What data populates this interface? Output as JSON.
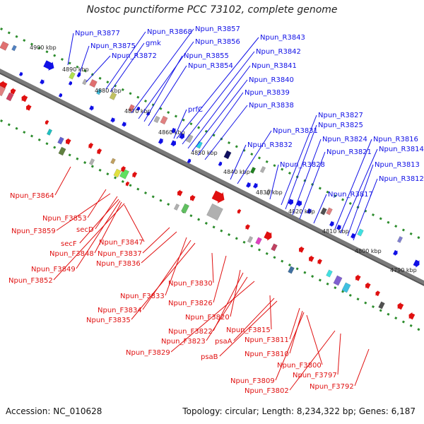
{
  "title": "Nostoc punctiforme PCC 73102, complete genome",
  "accession_text": "Accession: NC_010628",
  "summary_text": "Topology: circular; Length: 8,234,322 bp; Genes: 6,187",
  "colors": {
    "forward": "#1010e6",
    "reverse": "#e01010",
    "backbone": "#7a7a7a",
    "ticks": "#2c8c2c"
  },
  "scale_labels": [
    "4900 kbp",
    "4890 kbp",
    "4880 kbp",
    "4870 kbp",
    "4860 kbp",
    "4850 kbp",
    "4840 kbp",
    "4830 kbp",
    "4820 kbp",
    "4810 kbp",
    "4800 kbp",
    "4790 kbp"
  ],
  "forward_labels": [
    "Npun_R3877",
    "Npun_R3875",
    "Npun_R3872",
    "Npun_R3868",
    "gmk",
    "Npun_R3857",
    "Npun_R3856",
    "Npun_R3855",
    "Npun_R3854",
    "Npun_R3843",
    "Npun_R3842",
    "Npun_R3841",
    "Npun_R3840",
    "Npun_R3839",
    "Npun_R3838",
    "prfC",
    "Npun_R3832",
    "Npun_R3831",
    "Npun_R3828",
    "Npun_R3827",
    "Npun_R3825",
    "Npun_R3824",
    "Npun_R3821",
    "Npun_R3817",
    "Npun_R3816",
    "Npun_R3814",
    "Npun_R3813",
    "Npun_R3812"
  ],
  "reverse_labels": [
    "Npun_F3864",
    "Npun_F3853",
    "Npun_F3859",
    "secD",
    "secF",
    "Npun_F3848",
    "Npun_F3847",
    "Npun_F3849",
    "Npun_F3852",
    "Npun_F3837",
    "Npun_F3836",
    "Npun_F3830",
    "Npun_F3833",
    "Npun_F3834",
    "Npun_F3835",
    "Npun_F3826",
    "Npun_F3820",
    "Npun_F3822",
    "Npun_F3823",
    "Npun_F3829",
    "Npun_F3815",
    "psaA",
    "psaB",
    "Npun_F3811",
    "Npun_F3810",
    "Npun_F3800",
    "Npun_F3809",
    "Npun_F3802",
    "Npun_F3797",
    "Npun_F3792"
  ]
}
